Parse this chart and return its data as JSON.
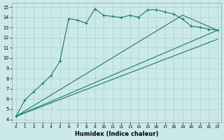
{
  "xlabel": "Humidex (Indice chaleur)",
  "bg_color": "#cce9e9",
  "grid_color": "#aad0d0",
  "line_color": "#1a7a6a",
  "xlim_min": -0.5,
  "xlim_max": 23.4,
  "ylim_min": 3.7,
  "ylim_max": 15.4,
  "xticks": [
    0,
    1,
    2,
    3,
    4,
    5,
    6,
    7,
    8,
    9,
    10,
    11,
    12,
    13,
    14,
    15,
    16,
    17,
    18,
    19,
    20,
    21,
    22,
    23
  ],
  "yticks": [
    4,
    5,
    6,
    7,
    8,
    9,
    10,
    11,
    12,
    13,
    14,
    15
  ],
  "line1_x": [
    0,
    1,
    2,
    3,
    4,
    5,
    6,
    7,
    8,
    9,
    10,
    11,
    12,
    13,
    14,
    15,
    16,
    17,
    18,
    19,
    20,
    21,
    22,
    23
  ],
  "line1_y": [
    4.3,
    5.9,
    6.7,
    7.5,
    8.3,
    9.7,
    13.85,
    13.72,
    13.42,
    14.82,
    14.18,
    14.08,
    13.98,
    14.18,
    14.0,
    14.72,
    14.73,
    14.52,
    14.3,
    13.82,
    13.12,
    13.02,
    12.82,
    12.72
  ],
  "line2_x": [
    0,
    19,
    23
  ],
  "line2_y": [
    4.3,
    14.2,
    12.72
  ],
  "line3_x": [
    0,
    23
  ],
  "line3_y": [
    4.3,
    12.72
  ],
  "line4_x": [
    0,
    23
  ],
  "line4_y": [
    4.3,
    11.85
  ]
}
